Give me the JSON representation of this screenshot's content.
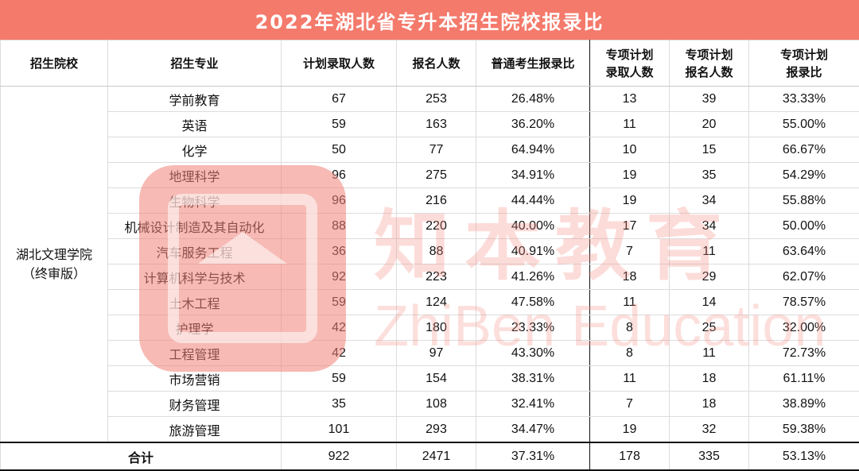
{
  "title": "2022年湖北省专升本招生院校报录比",
  "headers": {
    "school": "招生院校",
    "major": "招生专业",
    "planned": "计划录取人数",
    "applied": "报名人数",
    "ratio": "普通考生报录比",
    "special_planned_l1": "专项计划",
    "special_planned_l2": "录取人数",
    "special_applied_l1": "专项计划",
    "special_applied_l2": "报名人数",
    "special_ratio_l1": "专项计划",
    "special_ratio_l2": "报录比"
  },
  "school": {
    "line1": "湖北文理学院",
    "line2": "（终审版）"
  },
  "rows": [
    {
      "major": "学前教育",
      "planned": "67",
      "applied": "253",
      "ratio": "26.48%",
      "sp_planned": "13",
      "sp_applied": "39",
      "sp_ratio": "33.33%"
    },
    {
      "major": "英语",
      "planned": "59",
      "applied": "163",
      "ratio": "36.20%",
      "sp_planned": "11",
      "sp_applied": "20",
      "sp_ratio": "55.00%"
    },
    {
      "major": "化学",
      "planned": "50",
      "applied": "77",
      "ratio": "64.94%",
      "sp_planned": "10",
      "sp_applied": "15",
      "sp_ratio": "66.67%"
    },
    {
      "major": "地理科学",
      "planned": "96",
      "applied": "275",
      "ratio": "34.91%",
      "sp_planned": "19",
      "sp_applied": "35",
      "sp_ratio": "54.29%"
    },
    {
      "major": "生物科学",
      "planned": "96",
      "applied": "216",
      "ratio": "44.44%",
      "sp_planned": "19",
      "sp_applied": "34",
      "sp_ratio": "55.88%"
    },
    {
      "major": "机械设计制造及其自动化",
      "planned": "88",
      "applied": "220",
      "ratio": "40.00%",
      "sp_planned": "17",
      "sp_applied": "34",
      "sp_ratio": "50.00%"
    },
    {
      "major": "汽车服务工程",
      "planned": "36",
      "applied": "88",
      "ratio": "40.91%",
      "sp_planned": "7",
      "sp_applied": "11",
      "sp_ratio": "63.64%"
    },
    {
      "major": "计算机科学与技术",
      "planned": "92",
      "applied": "223",
      "ratio": "41.26%",
      "sp_planned": "18",
      "sp_applied": "29",
      "sp_ratio": "62.07%"
    },
    {
      "major": "土木工程",
      "planned": "59",
      "applied": "124",
      "ratio": "47.58%",
      "sp_planned": "11",
      "sp_applied": "14",
      "sp_ratio": "78.57%"
    },
    {
      "major": "护理学",
      "planned": "42",
      "applied": "180",
      "ratio": "23.33%",
      "sp_planned": "8",
      "sp_applied": "25",
      "sp_ratio": "32.00%"
    },
    {
      "major": "工程管理",
      "planned": "42",
      "applied": "97",
      "ratio": "43.30%",
      "sp_planned": "8",
      "sp_applied": "11",
      "sp_ratio": "72.73%"
    },
    {
      "major": "市场营销",
      "planned": "59",
      "applied": "154",
      "ratio": "38.31%",
      "sp_planned": "11",
      "sp_applied": "18",
      "sp_ratio": "61.11%"
    },
    {
      "major": "财务管理",
      "planned": "35",
      "applied": "108",
      "ratio": "32.41%",
      "sp_planned": "7",
      "sp_applied": "18",
      "sp_ratio": "38.89%"
    },
    {
      "major": "旅游管理",
      "planned": "101",
      "applied": "293",
      "ratio": "34.47%",
      "sp_planned": "19",
      "sp_applied": "32",
      "sp_ratio": "59.38%"
    }
  ],
  "total": {
    "label": "合计",
    "planned": "922",
    "applied": "2471",
    "ratio": "37.31%",
    "sp_planned": "178",
    "sp_applied": "335",
    "sp_ratio": "53.13%"
  },
  "watermark": {
    "cn": "知本教育",
    "en": "ZhiBen Education",
    "color": "#f47a6b"
  },
  "colors": {
    "title_bg": "#f47a6b",
    "title_fg": "#ffffff"
  }
}
